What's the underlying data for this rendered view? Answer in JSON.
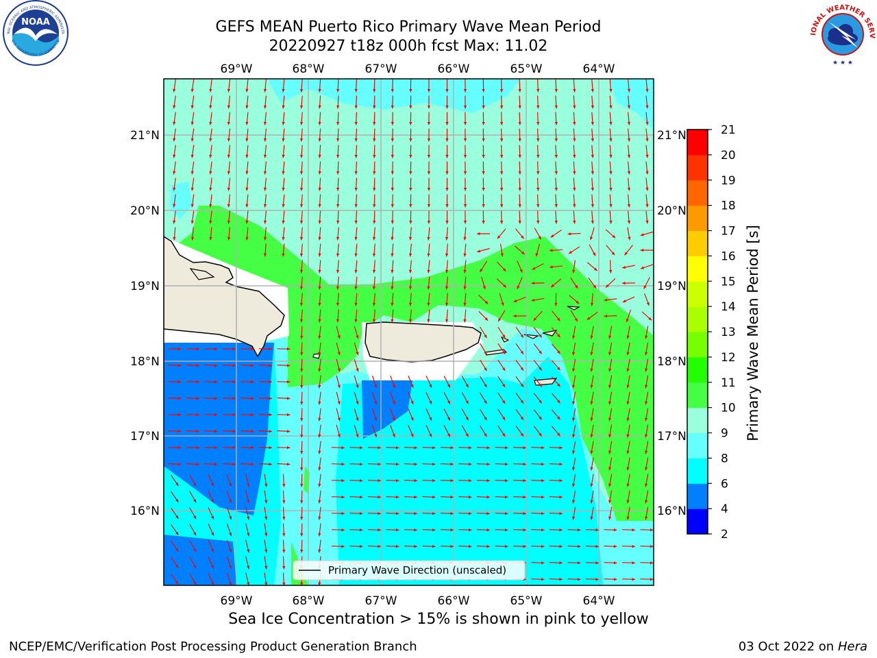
{
  "header": {
    "title_line1": "GEFS MEAN Puerto Rico Primary Wave Mean Period",
    "title_line2": "20220927 t18z 000h fcst   Max: 11.02"
  },
  "logos": {
    "left_text": "NOAA",
    "left_ring_text": "NATIONAL OCEANIC AND ATMOSPHERIC ADMINISTRATION",
    "left_ring_bottom": "U.S. DEPARTMENT OF COMMERCE",
    "right_ring_text": "NATIONAL WEATHER SERVICE"
  },
  "map": {
    "lon_labels": [
      "69°W",
      "68°W",
      "67°W",
      "66°W",
      "65°W",
      "64°W"
    ],
    "lat_labels": [
      "21°N",
      "20°N",
      "19°N",
      "18°N",
      "17°N",
      "16°N"
    ],
    "legend_label": "Primary Wave Direction (unscaled)",
    "arrow_color": "#ff0000",
    "land_color": "#efebdc"
  },
  "colorbar": {
    "label": "Primary Wave Mean Period [s]",
    "ticks": [
      "2",
      "4",
      "6",
      "8",
      "9",
      "10",
      "11",
      "12",
      "13",
      "14",
      "15",
      "16",
      "17",
      "18",
      "19",
      "20",
      "21"
    ],
    "colors": [
      "#0000ff",
      "#0080ff",
      "#00ffff",
      "#66ffff",
      "#99ffdd",
      "#44ff44",
      "#22ff00",
      "#77ff00",
      "#aaff00",
      "#ccff00",
      "#ffff00",
      "#ffcc00",
      "#ff9900",
      "#ff6600",
      "#ff3300",
      "#ff0000"
    ]
  },
  "note": "Sea Ice Concentration > 15% is shown in pink to yellow",
  "footer": {
    "left": "NCEP/EMC/Verification Post Processing Product Generation Branch",
    "date": "03 Oct 2022 on ",
    "host": "Hera"
  }
}
